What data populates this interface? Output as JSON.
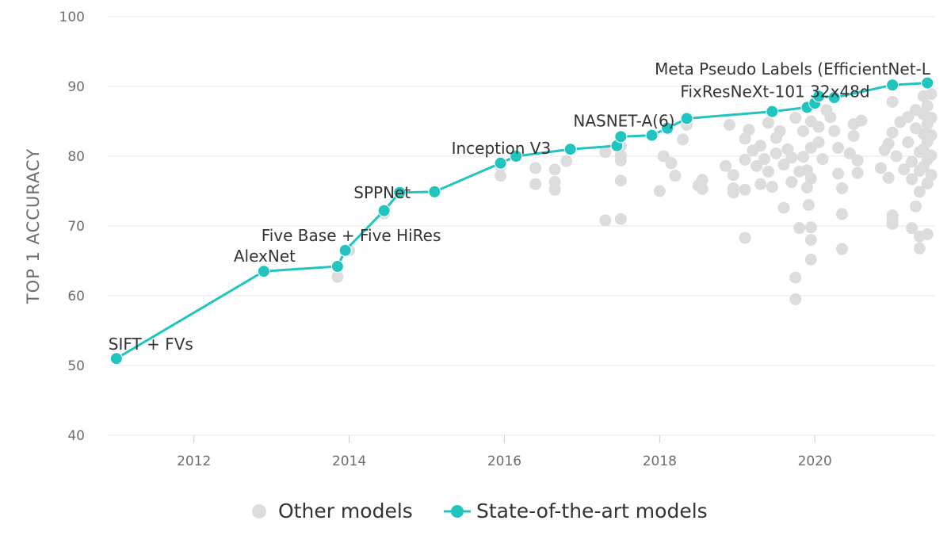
{
  "chart_data": {
    "type": "scatter",
    "title": "",
    "xlabel": "",
    "ylabel": "TOP 1 ACCURACY",
    "xlim": [
      2010.9,
      2021.55
    ],
    "ylim": [
      40,
      100
    ],
    "xticks": [
      2012,
      2014,
      2016,
      2018,
      2020
    ],
    "xtick_labels": [
      "2012",
      "2014",
      "2016",
      "2018",
      "2020"
    ],
    "yticks": [
      40,
      50,
      60,
      70,
      80,
      90,
      100
    ],
    "ytick_labels": [
      "40",
      "50",
      "60",
      "70",
      "80",
      "90",
      "100"
    ],
    "grid": "horizontal",
    "legend_position": "bottom",
    "colors": {
      "other": "#dcdcdc",
      "sota": "#21c5c0"
    },
    "series": [
      {
        "name": "Other models",
        "marker": "circle",
        "points": [
          [
            2013.85,
            62.7
          ],
          [
            2014.0,
            66.5
          ],
          [
            2014.45,
            71.8
          ],
          [
            2014.65,
            74.8
          ],
          [
            2015.95,
            77.2
          ],
          [
            2015.95,
            78.6
          ],
          [
            2016.15,
            79.9
          ],
          [
            2016.4,
            78.3
          ],
          [
            2016.4,
            76.0
          ],
          [
            2016.65,
            78.1
          ],
          [
            2016.65,
            76.3
          ],
          [
            2016.65,
            75.2
          ],
          [
            2016.8,
            79.3
          ],
          [
            2017.3,
            80.6
          ],
          [
            2017.3,
            70.8
          ],
          [
            2017.5,
            81.5
          ],
          [
            2017.5,
            79.4
          ],
          [
            2017.5,
            80.1
          ],
          [
            2017.5,
            76.5
          ],
          [
            2017.5,
            71.0
          ],
          [
            2018.05,
            80.0
          ],
          [
            2018.0,
            75.0
          ],
          [
            2018.15,
            79.0
          ],
          [
            2018.2,
            77.2
          ],
          [
            2018.3,
            82.4
          ],
          [
            2018.35,
            84.5
          ],
          [
            2018.5,
            75.8
          ],
          [
            2018.55,
            76.6
          ],
          [
            2018.55,
            75.3
          ],
          [
            2018.85,
            78.6
          ],
          [
            2018.9,
            84.5
          ],
          [
            2018.95,
            75.4
          ],
          [
            2018.95,
            77.3
          ],
          [
            2018.95,
            74.8
          ],
          [
            2019.1,
            82.5
          ],
          [
            2019.1,
            79.5
          ],
          [
            2019.1,
            75.2
          ],
          [
            2019.1,
            68.3
          ],
          [
            2019.15,
            83.8
          ],
          [
            2019.2,
            80.8
          ],
          [
            2019.25,
            78.6
          ],
          [
            2019.3,
            81.5
          ],
          [
            2019.3,
            76.0
          ],
          [
            2019.35,
            79.6
          ],
          [
            2019.4,
            84.8
          ],
          [
            2019.4,
            77.8
          ],
          [
            2019.45,
            75.6
          ],
          [
            2019.5,
            82.6
          ],
          [
            2019.5,
            80.4
          ],
          [
            2019.55,
            83.6
          ],
          [
            2019.6,
            78.8
          ],
          [
            2019.6,
            72.6
          ],
          [
            2019.65,
            81.0
          ],
          [
            2019.7,
            79.8
          ],
          [
            2019.7,
            76.3
          ],
          [
            2019.75,
            85.5
          ],
          [
            2019.75,
            62.6
          ],
          [
            2019.75,
            59.5
          ],
          [
            2019.8,
            77.8
          ],
          [
            2019.8,
            69.7
          ],
          [
            2019.85,
            83.6
          ],
          [
            2019.85,
            79.9
          ],
          [
            2019.9,
            78.0
          ],
          [
            2019.9,
            75.5
          ],
          [
            2019.92,
            73.0
          ],
          [
            2019.95,
            85.0
          ],
          [
            2019.95,
            81.2
          ],
          [
            2019.95,
            76.8
          ],
          [
            2019.95,
            69.8
          ],
          [
            2019.95,
            68.0
          ],
          [
            2019.95,
            65.2
          ],
          [
            2020.05,
            84.2
          ],
          [
            2020.05,
            82.0
          ],
          [
            2020.1,
            79.6
          ],
          [
            2020.15,
            86.6
          ],
          [
            2020.2,
            85.6
          ],
          [
            2020.25,
            83.6
          ],
          [
            2020.3,
            81.2
          ],
          [
            2020.3,
            77.5
          ],
          [
            2020.35,
            75.4
          ],
          [
            2020.35,
            71.7
          ],
          [
            2020.35,
            66.7
          ],
          [
            2020.45,
            80.4
          ],
          [
            2020.5,
            84.6
          ],
          [
            2020.5,
            82.9
          ],
          [
            2020.55,
            79.4
          ],
          [
            2020.55,
            77.6
          ],
          [
            2020.6,
            85.1
          ],
          [
            2020.85,
            78.3
          ],
          [
            2020.9,
            80.9
          ],
          [
            2020.95,
            81.8
          ],
          [
            2020.95,
            76.9
          ],
          [
            2021.0,
            87.8
          ],
          [
            2021.0,
            83.4
          ],
          [
            2021.0,
            71.5
          ],
          [
            2021.0,
            70.9
          ],
          [
            2021.0,
            70.3
          ],
          [
            2021.05,
            80.0
          ],
          [
            2021.1,
            84.9
          ],
          [
            2021.15,
            78.1
          ],
          [
            2021.2,
            85.6
          ],
          [
            2021.2,
            82.0
          ],
          [
            2021.25,
            79.2
          ],
          [
            2021.25,
            76.7
          ],
          [
            2021.25,
            69.7
          ],
          [
            2021.3,
            86.6
          ],
          [
            2021.3,
            84.0
          ],
          [
            2021.3,
            72.8
          ],
          [
            2021.35,
            80.6
          ],
          [
            2021.35,
            77.9
          ],
          [
            2021.35,
            74.9
          ],
          [
            2021.35,
            68.5
          ],
          [
            2021.35,
            66.8
          ],
          [
            2021.4,
            88.6
          ],
          [
            2021.4,
            86.0
          ],
          [
            2021.4,
            83.2
          ],
          [
            2021.4,
            81.0
          ],
          [
            2021.4,
            78.5
          ],
          [
            2021.45,
            87.2
          ],
          [
            2021.45,
            84.6
          ],
          [
            2021.45,
            82.1
          ],
          [
            2021.45,
            79.5
          ],
          [
            2021.45,
            76.1
          ],
          [
            2021.45,
            68.8
          ],
          [
            2021.5,
            88.9
          ],
          [
            2021.5,
            85.5
          ],
          [
            2021.5,
            83.0
          ],
          [
            2021.5,
            80.1
          ],
          [
            2021.5,
            77.3
          ]
        ]
      },
      {
        "name": "State-of-the-art models",
        "marker": "circle",
        "line": true,
        "points": [
          [
            2011.0,
            51.0
          ],
          [
            2012.9,
            63.5
          ],
          [
            2013.85,
            64.2
          ],
          [
            2013.95,
            66.5
          ],
          [
            2014.45,
            72.2
          ],
          [
            2014.65,
            74.8
          ],
          [
            2015.1,
            74.9
          ],
          [
            2015.95,
            79.0
          ],
          [
            2016.15,
            80.0
          ],
          [
            2016.85,
            81.0
          ],
          [
            2017.45,
            81.5
          ],
          [
            2017.5,
            82.8
          ],
          [
            2017.9,
            83.0
          ],
          [
            2018.1,
            84.0
          ],
          [
            2018.35,
            85.4
          ],
          [
            2019.45,
            86.4
          ],
          [
            2019.9,
            87.0
          ],
          [
            2020.0,
            87.6
          ],
          [
            2020.05,
            88.6
          ],
          [
            2020.25,
            88.4
          ],
          [
            2021.0,
            90.2
          ],
          [
            2021.45,
            90.5
          ]
        ],
        "labels": [
          {
            "text": "SIFT + FVs",
            "x": 2011.0,
            "y": 51.0
          },
          {
            "text": "AlexNet",
            "x": 2012.9,
            "y": 63.5
          },
          {
            "text": "Five Base + Five HiRes",
            "x": 2013.95,
            "y": 66.5
          },
          {
            "text": "SPPNet",
            "x": 2014.65,
            "y": 74.8
          },
          {
            "text": "Inception V3",
            "x": 2015.95,
            "y": 79.0
          },
          {
            "text": "NASNET-A(6)",
            "x": 2017.5,
            "y": 82.8
          },
          {
            "text": "FixResNeXt-101 32x48d",
            "x": 2019.9,
            "y": 87.0
          },
          {
            "text": "Meta Pseudo Labels (EfficientNet-L",
            "x": 2021.0,
            "y": 90.2
          }
        ]
      }
    ]
  },
  "legend": {
    "other_label": "Other models",
    "sota_label": "State-of-the-art models"
  }
}
